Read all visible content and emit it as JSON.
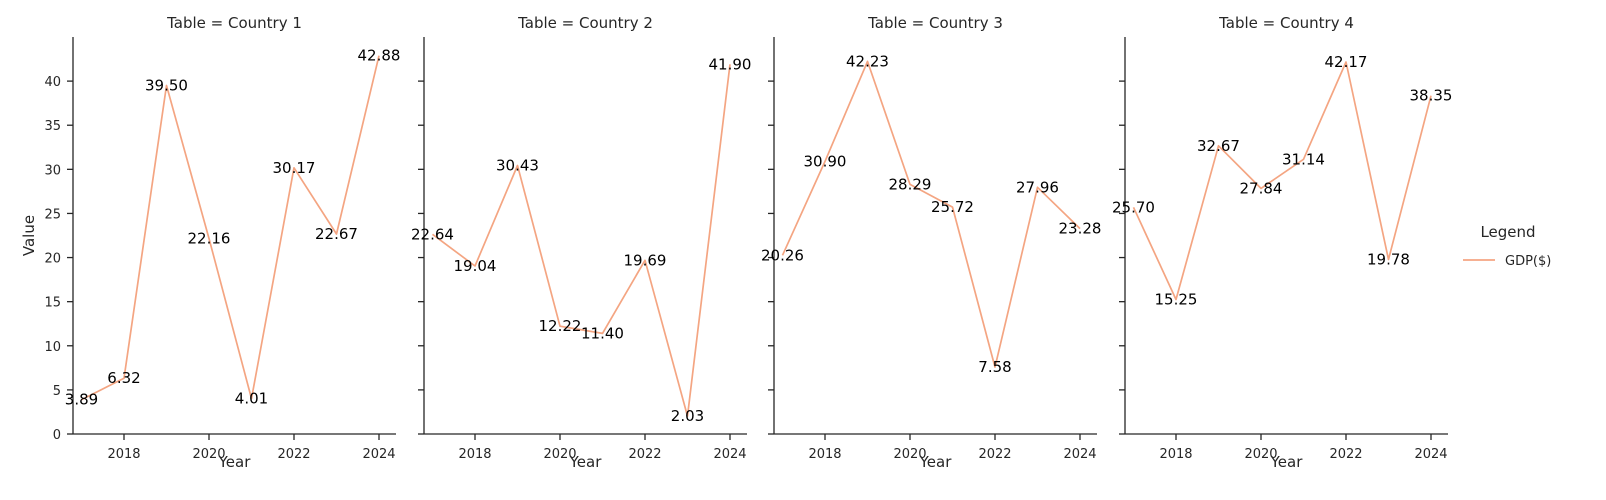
{
  "chart_data": {
    "type": "line",
    "facet_prefix": "Table = ",
    "xlabel": "Year",
    "ylabel": "Value",
    "ylim": [
      0,
      45
    ],
    "xlim": [
      2016.8,
      2024.4
    ],
    "x_ticks": [
      2018,
      2020,
      2022,
      2024
    ],
    "y_ticks": [
      0,
      5,
      10,
      15,
      20,
      25,
      30,
      35,
      40
    ],
    "grid": false,
    "legend": {
      "title": "Legend",
      "position": "right"
    },
    "series_color": "#f4a582",
    "panels": [
      {
        "title": "Table = Country 1",
        "series": [
          {
            "name": "GDP($)",
            "x": [
              2017,
              2018,
              2019,
              2020,
              2021,
              2022,
              2023,
              2024
            ],
            "values": [
              3.89,
              6.32,
              39.5,
              22.16,
              4.01,
              30.17,
              22.67,
              42.88
            ],
            "labels": [
              "3.89",
              "6.32",
              "39.50",
              "22.16",
              "4.01",
              "30.17",
              "22.67",
              "42.88"
            ]
          }
        ]
      },
      {
        "title": "Table = Country 2",
        "series": [
          {
            "name": "GDP($)",
            "x": [
              2017,
              2018,
              2019,
              2020,
              2021,
              2022,
              2023,
              2024
            ],
            "values": [
              22.64,
              19.04,
              30.43,
              12.22,
              11.4,
              19.69,
              2.03,
              41.9
            ],
            "labels": [
              "22.64",
              "19.04",
              "30.43",
              "12.22",
              "11.40",
              "19.69",
              "2.03",
              "41.90"
            ]
          }
        ]
      },
      {
        "title": "Table = Country 3",
        "series": [
          {
            "name": "GDP($)",
            "x": [
              2017,
              2018,
              2019,
              2020,
              2021,
              2022,
              2023,
              2024
            ],
            "values": [
              20.26,
              30.9,
              42.23,
              28.29,
              25.72,
              7.58,
              27.96,
              23.28
            ],
            "labels": [
              "20.26",
              "30.90",
              "42.23",
              "28.29",
              "25.72",
              "7.58",
              "27.96",
              "23.28"
            ]
          }
        ]
      },
      {
        "title": "Table = Country 4",
        "series": [
          {
            "name": "GDP($)",
            "x": [
              2017,
              2018,
              2019,
              2020,
              2021,
              2022,
              2023,
              2024
            ],
            "values": [
              25.7,
              15.25,
              32.67,
              27.84,
              31.14,
              42.17,
              19.78,
              38.35
            ],
            "labels": [
              "25.70",
              "15.25",
              "32.67",
              "27.84",
              "31.14",
              "42.17",
              "19.78",
              "38.35"
            ]
          }
        ]
      }
    ]
  }
}
